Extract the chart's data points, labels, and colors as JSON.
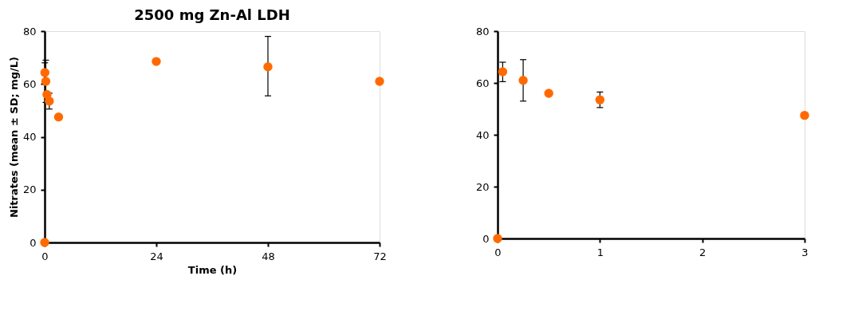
{
  "chart_data": [
    {
      "type": "scatter",
      "title": "2500 mg Zn-Al LDH",
      "xlabel": "Time (h)",
      "ylabel": "Nitrates (mean ± SD; mg/L)",
      "x": [
        0,
        0.05,
        0.25,
        0.5,
        1,
        3,
        24,
        48,
        72
      ],
      "series": [
        {
          "color": "#ff6a00",
          "values": [
            0,
            64.3,
            61,
            56,
            53.5,
            47.5,
            68.5,
            66.5,
            61
          ],
          "errors": [
            null,
            [
              60.5,
              68
            ],
            [
              53,
              69
            ],
            null,
            [
              50.5,
              56.5
            ],
            null,
            null,
            [
              55.5,
              78
            ],
            null
          ]
        }
      ],
      "xlim": [
        0,
        72
      ],
      "xticks": [
        0,
        24,
        48,
        72
      ],
      "ylim": [
        0,
        80
      ],
      "yticks": [
        0,
        20,
        40,
        60,
        80
      ],
      "grid": false,
      "marker": "circle"
    },
    {
      "type": "scatter",
      "x": [
        0,
        0.05,
        0.25,
        0.5,
        1,
        3
      ],
      "series": [
        {
          "color": "#ff6a00",
          "values": [
            0,
            64.3,
            61,
            56,
            53.5,
            47.5
          ],
          "errors": [
            null,
            [
              60.5,
              68
            ],
            [
              53,
              69
            ],
            null,
            [
              50.5,
              56.5
            ],
            null
          ]
        }
      ],
      "xlim": [
        0,
        3
      ],
      "xticks": [
        0,
        1,
        2,
        3
      ],
      "ylim": [
        0,
        80
      ],
      "yticks": [
        0,
        20,
        40,
        60,
        80
      ],
      "grid": false,
      "marker": "circle"
    }
  ]
}
